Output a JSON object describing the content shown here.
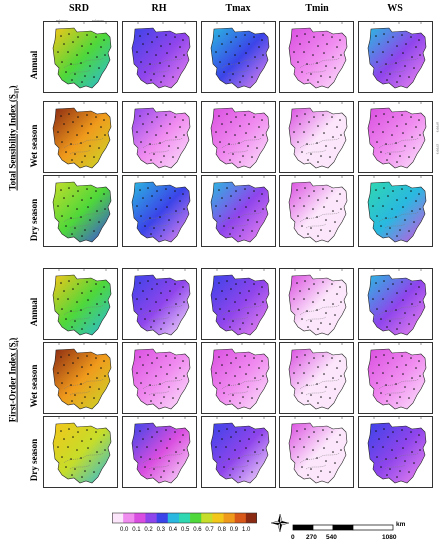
{
  "columns": [
    "SRD",
    "RH",
    "Tmax",
    "Tmin",
    "WS"
  ],
  "rows": [
    "Annual",
    "Wet season",
    "Dry season"
  ],
  "groups": [
    {
      "label": "Total Sensibility Index (S_Ti)",
      "main": "Total Sensibility Index (S",
      "sub": "Ti",
      "close": ")"
    },
    {
      "label": "First-Order Index (S_i)",
      "main": "First-Order Index (S",
      "sub": "i",
      "close": ")"
    }
  ],
  "legend": {
    "labels": [
      "0.0",
      "0.1",
      "0.2",
      "0.3",
      "0.4",
      "0.5",
      "0.6",
      "0.7",
      "0.8",
      "0.9",
      "1.0"
    ],
    "colors": [
      "#fce6fb",
      "#f08bf0",
      "#d94ee0",
      "#8f45ec",
      "#3b44e8",
      "#2ab8e0",
      "#2fd8b0",
      "#4fd83a",
      "#c6dd2a",
      "#f3c61a",
      "#f09a1c",
      "#d8581a",
      "#8b2a12"
    ]
  },
  "scale_bar": {
    "labels": [
      "0",
      "270",
      "540",
      "1080"
    ],
    "unit": "km"
  },
  "ticks": {
    "lon": [
      "60°0'0\"W",
      "55°0'0\"W"
    ],
    "lat": [
      "10°0'0\"S",
      "15°0'0\"S"
    ]
  },
  "panel_values": [
    [
      [
        0.62,
        0.25,
        0.3,
        0.05,
        0.28
      ],
      [
        0.85,
        0.1,
        0.08,
        0.02,
        0.06
      ],
      [
        0.55,
        0.3,
        0.28,
        0.04,
        0.4
      ]
    ],
    [
      [
        0.6,
        0.22,
        0.25,
        0.04,
        0.26
      ],
      [
        0.85,
        0.08,
        0.07,
        0.02,
        0.06
      ],
      [
        0.65,
        0.2,
        0.22,
        0.03,
        0.25
      ]
    ]
  ]
}
